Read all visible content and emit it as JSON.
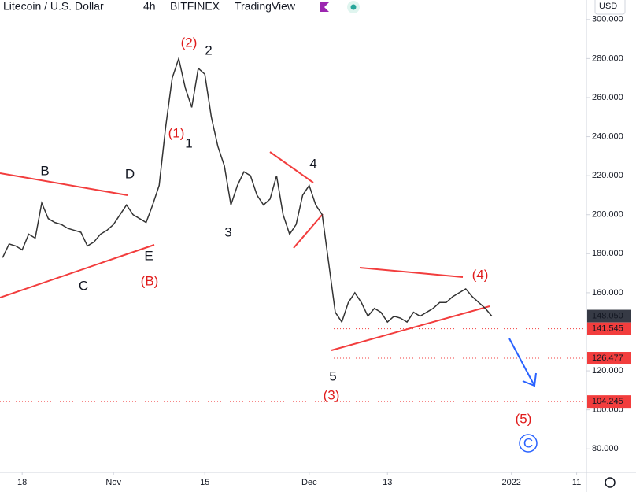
{
  "header": {
    "symbol": "Litecoin / U.S. Dollar",
    "interval": "4h",
    "exchange": "BITFINEX",
    "brand": "TradingView",
    "currency": "USD"
  },
  "chart_data": {
    "type": "line",
    "x": [
      -3,
      -2,
      -1,
      0,
      1,
      2,
      3,
      4,
      5,
      6,
      7,
      8,
      9,
      10,
      11,
      12,
      13,
      14,
      15,
      16,
      17,
      18,
      19,
      20,
      21,
      22,
      23,
      24,
      25,
      26,
      27,
      28,
      29,
      30,
      31,
      32,
      33,
      34,
      35,
      36,
      37,
      38,
      39,
      40,
      41,
      42,
      43,
      44,
      45,
      46,
      47,
      48,
      49,
      50,
      51,
      52,
      53,
      54,
      55,
      56,
      57,
      58,
      59,
      60,
      61,
      62,
      63,
      64,
      65,
      66,
      67,
      68,
      69,
      70,
      71,
      72
    ],
    "series": [
      {
        "name": "LTCUSD",
        "color": "#333333",
        "values": [
          178,
          185,
          184,
          182,
          190,
          188,
          206,
          198,
          196,
          195,
          193,
          192,
          191,
          184,
          186,
          190,
          192,
          195,
          200,
          205,
          200,
          198,
          196,
          205,
          215,
          245,
          270,
          280,
          265,
          255,
          275,
          272,
          250,
          235,
          225,
          205,
          215,
          222,
          220,
          210,
          205,
          208,
          220,
          200,
          190,
          195,
          210,
          215,
          205,
          200,
          175,
          150,
          145,
          155,
          160,
          155,
          148,
          152,
          150,
          145,
          148,
          147,
          145,
          150,
          148,
          150,
          152,
          155,
          155,
          158,
          160,
          162,
          158,
          155,
          152,
          148
        ]
      }
    ],
    "xlim": [
      -3.4,
      86.5
    ],
    "xticks": [
      {
        "value": 0,
        "label": "18"
      },
      {
        "value": 14,
        "label": "Nov"
      },
      {
        "value": 28,
        "label": "15"
      },
      {
        "value": 44,
        "label": "Dec"
      },
      {
        "value": 56,
        "label": "13"
      },
      {
        "value": 75,
        "label": "2022"
      },
      {
        "value": 85,
        "label": "11"
      }
    ],
    "ylim": [
      68,
      310
    ],
    "yticks": [
      {
        "value": 80,
        "label": "80.000"
      },
      {
        "value": 100,
        "label": "100.000"
      },
      {
        "value": 120,
        "label": "120.000"
      },
      {
        "value": 160,
        "label": "160.000"
      },
      {
        "value": 180,
        "label": "180.000"
      },
      {
        "value": 200,
        "label": "200.000"
      },
      {
        "value": 220,
        "label": "220.000"
      },
      {
        "value": 240,
        "label": "240.000"
      },
      {
        "value": 260,
        "label": "260.000"
      },
      {
        "value": 280,
        "label": "280.000"
      },
      {
        "value": 300,
        "label": "300.000"
      }
    ],
    "levels": [
      {
        "value": 148.05,
        "label": "148.050",
        "color": "#363a45"
      },
      {
        "value": 141.545,
        "label": "141.545",
        "color": "#f23d3d"
      },
      {
        "value": 126.477,
        "label": "126.477",
        "color": "#f23d3d"
      },
      {
        "value": 104.245,
        "label": "104.245",
        "color": "#f23d3d"
      }
    ],
    "annotations": [
      {
        "text": "(2)",
        "color": "#e01b1b"
      },
      {
        "text": "2",
        "color": "#131722"
      },
      {
        "text": "(1)",
        "color": "#e01b1b"
      },
      {
        "text": "1",
        "color": "#131722"
      },
      {
        "text": "B",
        "color": "#131722"
      },
      {
        "text": "D",
        "color": "#131722"
      },
      {
        "text": "C",
        "color": "#131722"
      },
      {
        "text": "E",
        "color": "#131722"
      },
      {
        "text": "(B)",
        "color": "#e01b1b"
      },
      {
        "text": "3",
        "color": "#131722"
      },
      {
        "text": "4",
        "color": "#131722"
      },
      {
        "text": "5",
        "color": "#131722"
      },
      {
        "text": "(3)",
        "color": "#e01b1b"
      },
      {
        "text": "(4)",
        "color": "#e01b1b"
      },
      {
        "text": "(5)",
        "color": "#e01b1b"
      },
      {
        "text": "C",
        "color": "#2962ff"
      }
    ]
  }
}
